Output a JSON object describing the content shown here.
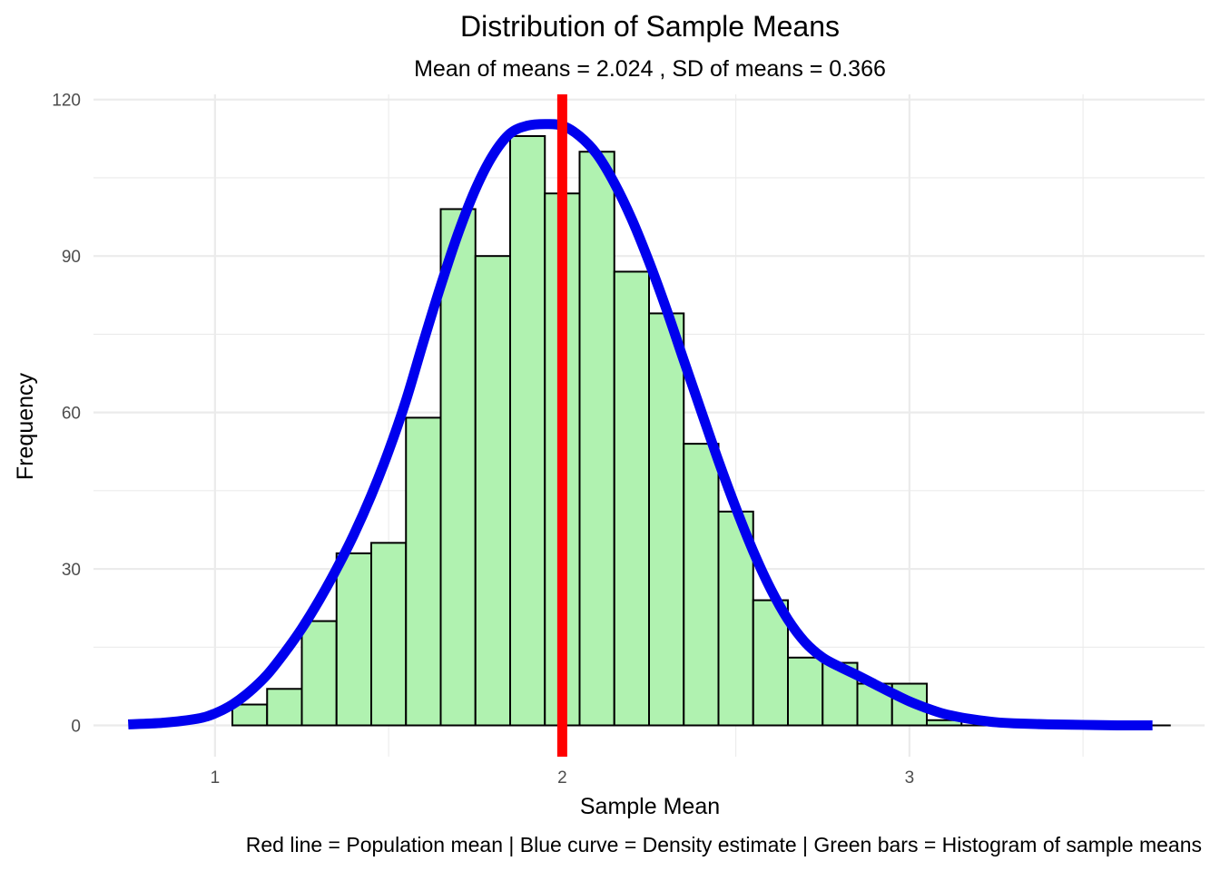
{
  "chart_data": {
    "type": "bar",
    "title": "Distribution of Sample Means",
    "subtitle": "Mean of means = 2.024 , SD of means = 0.366",
    "xlabel": "Sample Mean",
    "ylabel": "Frequency",
    "caption": "Red line = Population mean | Blue curve = Density estimate | Green bars = Histogram of sample means",
    "xlim": [
      0.65,
      3.85
    ],
    "ylim": [
      -6,
      121
    ],
    "x_ticks": [
      1,
      2,
      3
    ],
    "y_ticks": [
      0,
      30,
      60,
      90,
      120
    ],
    "grid": true,
    "bin_width": 0.1,
    "bins": [
      {
        "x": 1.1,
        "count": 4
      },
      {
        "x": 1.2,
        "count": 7
      },
      {
        "x": 1.3,
        "count": 20
      },
      {
        "x": 1.4,
        "count": 33
      },
      {
        "x": 1.5,
        "count": 35
      },
      {
        "x": 1.6,
        "count": 59
      },
      {
        "x": 1.7,
        "count": 99
      },
      {
        "x": 1.8,
        "count": 90
      },
      {
        "x": 1.9,
        "count": 113
      },
      {
        "x": 2.0,
        "count": 102
      },
      {
        "x": 2.1,
        "count": 110
      },
      {
        "x": 2.2,
        "count": 87
      },
      {
        "x": 2.3,
        "count": 79
      },
      {
        "x": 2.4,
        "count": 54
      },
      {
        "x": 2.5,
        "count": 41
      },
      {
        "x": 2.6,
        "count": 24
      },
      {
        "x": 2.7,
        "count": 13
      },
      {
        "x": 2.8,
        "count": 12
      },
      {
        "x": 2.9,
        "count": 8
      },
      {
        "x": 3.0,
        "count": 8
      },
      {
        "x": 3.1,
        "count": 1
      },
      {
        "x": 3.2,
        "count": 0
      },
      {
        "x": 3.3,
        "count": 0
      },
      {
        "x": 3.4,
        "count": 0
      },
      {
        "x": 3.5,
        "count": 0
      },
      {
        "x": 3.6,
        "count": 0
      },
      {
        "x": 3.7,
        "count": 0
      }
    ],
    "density_curve": {
      "x": [
        0.75,
        0.85,
        0.95,
        1.0,
        1.05,
        1.1,
        1.15,
        1.2,
        1.25,
        1.3,
        1.35,
        1.4,
        1.45,
        1.5,
        1.55,
        1.6,
        1.65,
        1.7,
        1.75,
        1.8,
        1.85,
        1.9,
        1.95,
        2.0,
        2.05,
        2.1,
        2.15,
        2.2,
        2.25,
        2.3,
        2.35,
        2.4,
        2.45,
        2.5,
        2.55,
        2.6,
        2.65,
        2.7,
        2.75,
        2.8,
        2.85,
        2.9,
        2.95,
        3.0,
        3.05,
        3.1,
        3.15,
        3.2,
        3.25,
        3.3,
        3.4,
        3.5,
        3.6,
        3.7
      ],
      "y": [
        0.2,
        0.5,
        1.3,
        2.3,
        4.0,
        6.5,
        9.7,
        13.9,
        18.6,
        24.0,
        30.0,
        36.6,
        44.1,
        52.6,
        62.3,
        73.5,
        84.3,
        94.3,
        102.8,
        109.3,
        113.5,
        115.0,
        115.3,
        115.0,
        113.0,
        109.5,
        104.0,
        97.1,
        88.9,
        79.8,
        70.0,
        60.3,
        50.7,
        41.7,
        33.4,
        26.2,
        20.3,
        15.9,
        13.0,
        11.2,
        9.6,
        7.9,
        6.2,
        4.6,
        3.3,
        2.2,
        1.5,
        1.0,
        0.6,
        0.4,
        0.2,
        0.1,
        0.0,
        0.0
      ]
    },
    "population_mean": 2.0,
    "colors": {
      "bar_fill": "#b0f2b0",
      "bar_stroke": "#000000",
      "density_line": "#0000ee",
      "mean_line": "#ff0000",
      "grid": "#ebebeb",
      "tick_text": "#4d4d4d"
    }
  }
}
